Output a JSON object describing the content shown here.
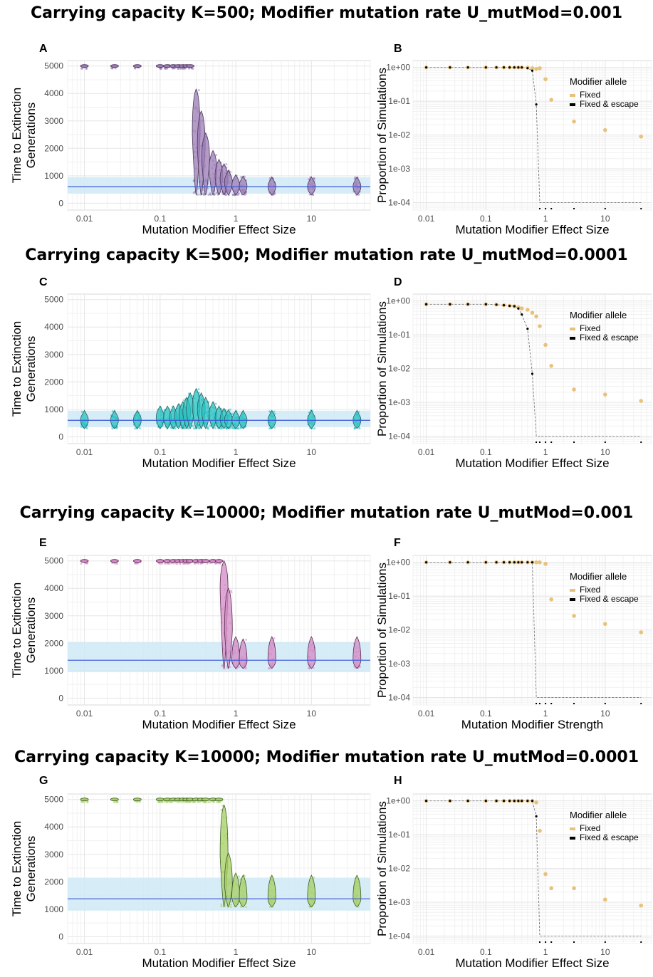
{
  "colors": {
    "purple": "#9b7bb5",
    "purple_dark": "#4a3658",
    "cyan": "#27c2c2",
    "cyan_dark": "#2d5c5c",
    "pink": "#d38bc6",
    "pink_dark": "#5e2b52",
    "green": "#a6cf62",
    "green_dark": "#3f5f2c",
    "band": "#cfe9f5",
    "line": "#3a57d6",
    "gold": "#e8c27a",
    "black": "#000000"
  },
  "row_titles": [
    "Carrying capacity K=500; Modifier mutation rate U_mutMod=0.001",
    "Carrying capacity K=500; Modifier mutation rate U_mutMod=0.0001",
    "Carrying capacity K=10000; Modifier mutation rate U_mutMod=0.001",
    "Carrying capacity K=10000; Modifier mutation rate U_mutMod=0.0001"
  ],
  "chart_data": [
    {
      "id": "A",
      "type": "violin",
      "xscale": "log",
      "xlabel": "Mutation Modifier Effect Size",
      "ylabel": "Time to Extinction\nGenerations",
      "ylim": [
        0,
        5000
      ],
      "yticks": [
        0,
        1000,
        2000,
        3000,
        4000,
        5000
      ],
      "xticks": [
        "0.01",
        "0.1",
        "1",
        "10"
      ],
      "baseline": 600,
      "band": [
        350,
        950
      ],
      "color": "purple",
      "x": [
        0.01,
        0.025,
        0.05,
        0.1,
        0.125,
        0.15,
        0.175,
        0.2,
        0.225,
        0.25,
        0.3,
        0.35,
        0.4,
        0.5,
        0.6,
        0.7,
        0.8,
        1.0,
        1.25,
        3,
        10,
        40
      ],
      "median": [
        5000,
        5000,
        5000,
        5000,
        5000,
        5000,
        5000,
        5000,
        5000,
        5000,
        2600,
        2100,
        1600,
        1200,
        1000,
        900,
        750,
        650,
        620,
        600,
        600,
        600
      ]
    },
    {
      "id": "B",
      "type": "scatter",
      "xscale": "log",
      "yscale": "log",
      "xlabel": "Mutation Modifier Effect Size",
      "ylabel": "Proportion of Simulations",
      "ylim": [
        0.0001,
        1
      ],
      "yticks": [
        "1e-04",
        "1e-03",
        "1e-02",
        "1e-01",
        "1e+00"
      ],
      "xticks": [
        "0.01",
        "0.1",
        "1",
        "10"
      ],
      "legend_title": "Modifier allele",
      "series": [
        {
          "name": "Fixed",
          "x": [
            0.01,
            0.025,
            0.05,
            0.1,
            0.15,
            0.2,
            0.25,
            0.3,
            0.35,
            0.4,
            0.5,
            0.6,
            0.7,
            0.8,
            1.0,
            1.25,
            3,
            10,
            40
          ],
          "y": [
            1,
            1,
            1,
            1,
            1,
            1,
            1,
            1,
            1,
            1,
            1,
            0.95,
            0.9,
            0.95,
            0.45,
            0.11,
            0.025,
            0.014,
            0.009
          ]
        },
        {
          "name": "Fixed & escape",
          "x": [
            0.01,
            0.025,
            0.05,
            0.1,
            0.15,
            0.2,
            0.25,
            0.3,
            0.35,
            0.4,
            0.5,
            0.6,
            0.7,
            0.8,
            1.0,
            1.25,
            3,
            10,
            40
          ],
          "y": [
            1,
            1,
            1,
            1,
            1,
            1,
            1,
            1,
            1,
            1,
            0.95,
            0.8,
            0.08,
            0.0001,
            0.0001,
            0.0001,
            0.0001,
            0.0001,
            0.0001
          ]
        }
      ]
    },
    {
      "id": "C",
      "type": "violin",
      "xscale": "log",
      "xlabel": "Mutation Modifier Effect Size",
      "ylabel": "Time to Extinction\nGenerations",
      "ylim": [
        0,
        5000
      ],
      "yticks": [
        0,
        1000,
        2000,
        3000,
        4000,
        5000
      ],
      "xticks": [
        "0.01",
        "0.1",
        "1",
        "10"
      ],
      "baseline": 600,
      "band": [
        350,
        950
      ],
      "color": "cyan",
      "x": [
        0.01,
        0.025,
        0.05,
        0.1,
        0.125,
        0.15,
        0.175,
        0.2,
        0.225,
        0.25,
        0.3,
        0.35,
        0.4,
        0.5,
        0.6,
        0.7,
        0.8,
        1.0,
        1.25,
        3,
        10,
        40
      ],
      "median": [
        600,
        600,
        600,
        700,
        700,
        700,
        750,
        800,
        900,
        1000,
        1100,
        1000,
        900,
        800,
        700,
        650,
        620,
        600,
        600,
        600,
        600,
        600
      ]
    },
    {
      "id": "D",
      "type": "scatter",
      "xscale": "log",
      "yscale": "log",
      "xlabel": "Mutation Modifier Effect Size",
      "ylabel": "Proportion of Simulations",
      "ylim": [
        0.0001,
        1
      ],
      "yticks": [
        "1e-04",
        "1e-03",
        "1e-02",
        "1e-01",
        "1e+00"
      ],
      "xticks": [
        "0.01",
        "0.1",
        "1",
        "10"
      ],
      "legend_title": "Modifier allele",
      "series": [
        {
          "name": "Fixed",
          "x": [
            0.01,
            0.025,
            0.05,
            0.1,
            0.15,
            0.2,
            0.25,
            0.3,
            0.35,
            0.4,
            0.5,
            0.6,
            0.7,
            0.8,
            1.0,
            1.25,
            3,
            10,
            40
          ],
          "y": [
            0.8,
            0.8,
            0.8,
            0.8,
            0.78,
            0.75,
            0.72,
            0.7,
            0.65,
            0.6,
            0.55,
            0.45,
            0.35,
            0.18,
            0.05,
            0.012,
            0.0024,
            0.0017,
            0.0011
          ]
        },
        {
          "name": "Fixed & escape",
          "x": [
            0.01,
            0.025,
            0.05,
            0.1,
            0.15,
            0.2,
            0.25,
            0.3,
            0.35,
            0.4,
            0.5,
            0.6,
            0.7,
            0.8,
            1.0,
            1.25,
            3,
            10,
            40
          ],
          "y": [
            0.8,
            0.8,
            0.8,
            0.8,
            0.78,
            0.75,
            0.72,
            0.7,
            0.6,
            0.4,
            0.15,
            0.007,
            0.0001,
            0.0001,
            0.0001,
            0.0001,
            0.0001,
            0.0001,
            0.0001
          ]
        }
      ]
    },
    {
      "id": "E",
      "type": "violin",
      "xscale": "log",
      "xlabel": "Mutation Modifier Effect Size",
      "ylabel": "Time to Extinction\nGenerations",
      "ylim": [
        0,
        5000
      ],
      "yticks": [
        0,
        1000,
        2000,
        3000,
        4000,
        5000
      ],
      "xticks": [
        "0.01",
        "0.1",
        "1",
        "10"
      ],
      "baseline": 1380,
      "band": [
        950,
        2050
      ],
      "color": "pink",
      "x": [
        0.01,
        0.025,
        0.05,
        0.1,
        0.125,
        0.15,
        0.175,
        0.2,
        0.225,
        0.25,
        0.3,
        0.35,
        0.4,
        0.5,
        0.6,
        0.7,
        0.8,
        1.0,
        1.25,
        3,
        10,
        40
      ],
      "median": [
        5000,
        5000,
        5000,
        5000,
        5000,
        5000,
        5000,
        5000,
        5000,
        5000,
        5000,
        5000,
        5000,
        5000,
        5000,
        4000,
        2500,
        1400,
        1350,
        1400,
        1400,
        1400
      ]
    },
    {
      "id": "F",
      "type": "scatter",
      "xscale": "log",
      "yscale": "log",
      "xlabel": "Mutation Modifier Strength",
      "ylabel": "Proportion of Simulations",
      "ylim": [
        0.0001,
        1
      ],
      "yticks": [
        "1e-04",
        "1e-03",
        "1e-02",
        "1e-01",
        "1e+00"
      ],
      "xticks": [
        "0.01",
        "0.1",
        "1",
        "10"
      ],
      "legend_title": "Modifier allele",
      "series": [
        {
          "name": "Fixed",
          "x": [
            0.01,
            0.025,
            0.05,
            0.1,
            0.15,
            0.2,
            0.25,
            0.3,
            0.35,
            0.4,
            0.5,
            0.6,
            0.7,
            0.8,
            1.0,
            1.25,
            3,
            10,
            40
          ],
          "y": [
            1,
            1,
            1,
            1,
            1,
            1,
            1,
            1,
            1,
            1,
            1,
            1,
            1,
            1,
            0.9,
            0.08,
            0.026,
            0.015,
            0.0085
          ]
        },
        {
          "name": "Fixed & escape",
          "x": [
            0.01,
            0.025,
            0.05,
            0.1,
            0.15,
            0.2,
            0.25,
            0.3,
            0.35,
            0.4,
            0.5,
            0.6,
            0.7,
            0.8,
            1.0,
            1.25,
            3,
            10,
            40
          ],
          "y": [
            1,
            1,
            1,
            1,
            1,
            1,
            1,
            1,
            1,
            1,
            1,
            1,
            0.0001,
            0.0001,
            0.0001,
            0.0001,
            0.0001,
            0.0001,
            0.0001
          ]
        }
      ]
    },
    {
      "id": "G",
      "type": "violin",
      "xscale": "log",
      "xlabel": "Mutation Modifier Effect Size",
      "ylabel": "Time to Extinction\nGenerations",
      "ylim": [
        0,
        5000
      ],
      "yticks": [
        0,
        1000,
        2000,
        3000,
        4000,
        5000
      ],
      "xticks": [
        "0.01",
        "0.1",
        "1",
        "10"
      ],
      "baseline": 1380,
      "band": [
        950,
        2150
      ],
      "color": "green",
      "x": [
        0.01,
        0.025,
        0.05,
        0.1,
        0.125,
        0.15,
        0.175,
        0.2,
        0.225,
        0.25,
        0.3,
        0.35,
        0.4,
        0.5,
        0.6,
        0.7,
        0.8,
        1.0,
        1.25,
        3,
        10,
        40
      ],
      "median": [
        5000,
        5000,
        5000,
        5000,
        5000,
        5000,
        5000,
        5000,
        5000,
        5000,
        5000,
        5000,
        5000,
        5000,
        4900,
        3000,
        1900,
        1450,
        1400,
        1400,
        1400,
        1400
      ]
    },
    {
      "id": "H",
      "type": "scatter",
      "xscale": "log",
      "yscale": "log",
      "xlabel": "Mutation Modifier Effect Size",
      "ylabel": "Proportion of Simulations",
      "ylim": [
        0.0001,
        1
      ],
      "yticks": [
        "1e-04",
        "1e-03",
        "1e-02",
        "1e-01",
        "1e+00"
      ],
      "xticks": [
        "0.01",
        "0.1",
        "1",
        "10"
      ],
      "legend_title": "Modifier allele",
      "series": [
        {
          "name": "Fixed",
          "x": [
            0.01,
            0.025,
            0.05,
            0.1,
            0.15,
            0.2,
            0.25,
            0.3,
            0.35,
            0.4,
            0.5,
            0.6,
            0.7,
            0.8,
            1.0,
            1.25,
            3,
            10,
            40
          ],
          "y": [
            1,
            1,
            1,
            1,
            1,
            1,
            1,
            1,
            1,
            1,
            1,
            1,
            0.9,
            0.13,
            0.0068,
            0.0026,
            0.0026,
            0.0012,
            0.0008
          ]
        },
        {
          "name": "Fixed & escape",
          "x": [
            0.01,
            0.025,
            0.05,
            0.1,
            0.15,
            0.2,
            0.25,
            0.3,
            0.35,
            0.4,
            0.5,
            0.6,
            0.7,
            0.8,
            1.0,
            1.25,
            3,
            10,
            40
          ],
          "y": [
            1,
            1,
            1,
            1,
            1,
            1,
            1,
            1,
            1,
            1,
            1,
            1,
            0.35,
            0.0001,
            0.0001,
            0.0001,
            0.0001,
            0.0001,
            0.0001
          ]
        }
      ]
    }
  ]
}
